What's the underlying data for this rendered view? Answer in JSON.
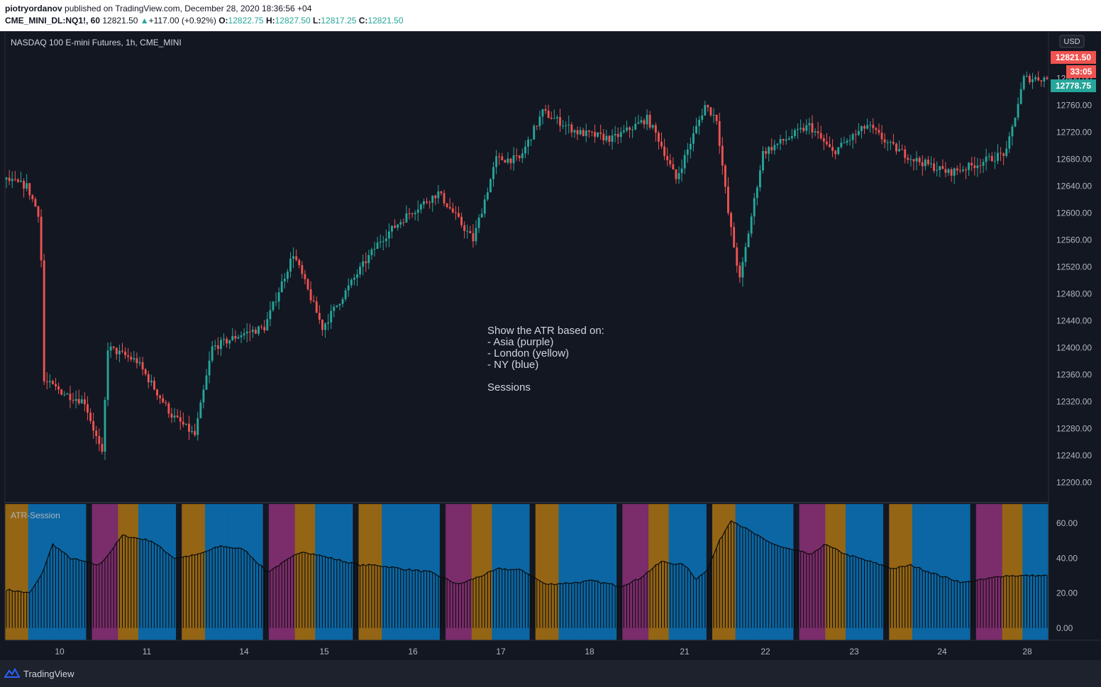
{
  "header": {
    "publisher": "piotryordanov",
    "published_text": "published on TradingView.com, December 28, 2020 18:36:56 +04",
    "symbol": "CME_MINI_DL:NQ1!, 60",
    "last": "12821.50",
    "change": "+117.00 (+0.92%)",
    "o_label": "O:",
    "o": "12822.75",
    "h_label": "H:",
    "h": "12827.50",
    "l_label": "L:",
    "l": "12817.25",
    "c_label": "C:",
    "c": "12821.50"
  },
  "main_title": "NASDAQ 100 E-mini Futures, 1h, CME_MINI",
  "currency": "USD",
  "price_badges": {
    "last": "12821.50",
    "countdown": "33:05",
    "other": "12778.75"
  },
  "annotation_lines": [
    "Show the ATR based on:",
    "- Asia (purple)",
    "- London (yellow)",
    "- NY (blue)",
    "",
    "Sessions"
  ],
  "indicator_title": "ATR-Session",
  "footer": {
    "brand": "TradingView"
  },
  "colors": {
    "background": "#131722",
    "up": "#26a69a",
    "down": "#ef5350",
    "asia": "#7a2c6b",
    "london": "#946514",
    "ny": "#0b66a3",
    "badge_last": "#ef5350",
    "badge_other": "#26a69a"
  },
  "chart_data": [
    {
      "type": "candlestick",
      "title": "NASDAQ 100 E-mini Futures, 1h, CME_MINI",
      "y_ticks": [
        12200,
        12240,
        12280,
        12320,
        12360,
        12400,
        12440,
        12480,
        12520,
        12560,
        12600,
        12640,
        12680,
        12720,
        12760,
        12800
      ],
      "x_ticks": [
        "10",
        "11",
        "14",
        "15",
        "16",
        "17",
        "18",
        "21",
        "22",
        "23",
        "24",
        "28"
      ],
      "ylim": [
        12170,
        12870
      ],
      "close_path": [
        [
          0,
          12650
        ],
        [
          8,
          12640
        ],
        [
          12,
          12600
        ],
        [
          13,
          12530
        ],
        [
          14,
          12350
        ],
        [
          22,
          12330
        ],
        [
          28,
          12320
        ],
        [
          34,
          12240
        ],
        [
          36,
          12400
        ],
        [
          46,
          12380
        ],
        [
          58,
          12300
        ],
        [
          66,
          12270
        ],
        [
          72,
          12400
        ],
        [
          82,
          12420
        ],
        [
          90,
          12430
        ],
        [
          100,
          12540
        ],
        [
          110,
          12430
        ],
        [
          122,
          12510
        ],
        [
          130,
          12560
        ],
        [
          140,
          12600
        ],
        [
          150,
          12630
        ],
        [
          162,
          12560
        ],
        [
          170,
          12680
        ],
        [
          178,
          12680
        ],
        [
          186,
          12750
        ],
        [
          198,
          12720
        ],
        [
          210,
          12710
        ],
        [
          222,
          12740
        ],
        [
          226,
          12710
        ],
        [
          232,
          12650
        ],
        [
          242,
          12760
        ],
        [
          246,
          12740
        ],
        [
          250,
          12600
        ],
        [
          254,
          12500
        ],
        [
          262,
          12690
        ],
        [
          270,
          12710
        ],
        [
          278,
          12730
        ],
        [
          286,
          12690
        ],
        [
          298,
          12730
        ],
        [
          306,
          12700
        ],
        [
          314,
          12680
        ],
        [
          326,
          12660
        ],
        [
          334,
          12670
        ],
        [
          346,
          12690
        ],
        [
          352,
          12800
        ]
      ],
      "last": 12821.5
    },
    {
      "type": "bar",
      "title": "ATR-Session",
      "y_ticks": [
        0,
        20,
        40,
        60
      ],
      "ylim": [
        -7,
        71
      ],
      "sessions": [
        "Asia",
        "London",
        "NY"
      ],
      "atr_path": [
        [
          0,
          22
        ],
        [
          8,
          20
        ],
        [
          12,
          30
        ],
        [
          16,
          48
        ],
        [
          22,
          40
        ],
        [
          32,
          36
        ],
        [
          36,
          44
        ],
        [
          40,
          53
        ],
        [
          50,
          50
        ],
        [
          58,
          40
        ],
        [
          66,
          42
        ],
        [
          74,
          47
        ],
        [
          82,
          45
        ],
        [
          90,
          32
        ],
        [
          96,
          38
        ],
        [
          102,
          44
        ],
        [
          112,
          40
        ],
        [
          122,
          36
        ],
        [
          128,
          36
        ],
        [
          136,
          34
        ],
        [
          146,
          32
        ],
        [
          156,
          25
        ],
        [
          164,
          30
        ],
        [
          170,
          34
        ],
        [
          178,
          33
        ],
        [
          186,
          25
        ],
        [
          196,
          26
        ],
        [
          202,
          27
        ],
        [
          212,
          24
        ],
        [
          218,
          28
        ],
        [
          226,
          38
        ],
        [
          234,
          36
        ],
        [
          238,
          28
        ],
        [
          242,
          34
        ],
        [
          246,
          50
        ],
        [
          250,
          62
        ],
        [
          254,
          58
        ],
        [
          262,
          50
        ],
        [
          268,
          46
        ],
        [
          278,
          42
        ],
        [
          282,
          48
        ],
        [
          290,
          42
        ],
        [
          298,
          38
        ],
        [
          306,
          34
        ],
        [
          312,
          36
        ],
        [
          322,
          30
        ],
        [
          330,
          26
        ],
        [
          338,
          28
        ],
        [
          344,
          30
        ],
        [
          352,
          30
        ]
      ]
    }
  ]
}
